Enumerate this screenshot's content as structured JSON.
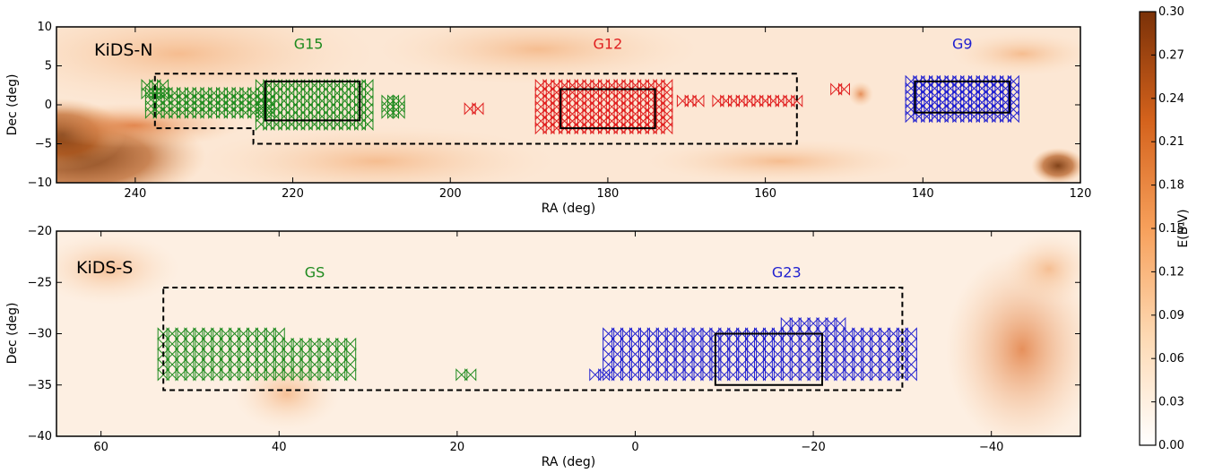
{
  "chart_data": [
    {
      "type": "scatter",
      "panel": "top",
      "annotation": "KiDS-N",
      "xlabel": "RA (deg)",
      "ylabel": "Dec (deg)",
      "xlim": [
        250,
        120
      ],
      "ylim": [
        -10,
        10
      ],
      "xticks": [
        240,
        220,
        200,
        180,
        160,
        140,
        120
      ],
      "yticks": [
        -10,
        -5,
        0,
        5,
        10
      ],
      "background": "dust extinction map E(B-V)",
      "field_labels": [
        {
          "text": "G15",
          "x": 218,
          "y": 7.2,
          "color": "#1e8a1e"
        },
        {
          "text": "G12",
          "x": 180,
          "y": 7.2,
          "color": "#e02020"
        },
        {
          "text": "G9",
          "x": 135,
          "y": 7.2,
          "color": "#2020d0"
        }
      ],
      "fields": [
        {
          "name": "G15",
          "ra": [
            211.5,
            223.5
          ],
          "dec": [
            -2,
            3
          ]
        },
        {
          "name": "G12",
          "ra": [
            174,
            186
          ],
          "dec": [
            -3,
            2
          ]
        },
        {
          "name": "G9",
          "ra": [
            129,
            141
          ],
          "dec": [
            -1,
            3
          ]
        }
      ],
      "footprint": [
        [
          237.5,
          4
        ],
        [
          156,
          4
        ],
        [
          156,
          -5
        ],
        [
          225,
          -5
        ],
        [
          225,
          -3
        ],
        [
          237.5,
          -3
        ]
      ],
      "series": [
        {
          "color": "#1e8a1e",
          "blocks": [
            {
              "ra": [
                238,
                223
              ],
              "dec": [
                -1,
                1.5
              ]
            },
            {
              "ra": [
                238.5,
                236.5
              ],
              "dec": [
                1.5,
                2.5
              ]
            },
            {
              "ra": [
                224,
                210.5
              ],
              "dec": [
                -2.5,
                2.5
              ]
            },
            {
              "ra": [
                208,
                206.5
              ],
              "dec": [
                -1,
                0.5
              ]
            }
          ]
        },
        {
          "color": "#e02020",
          "blocks": [
            {
              "ra": [
                188.5,
                172.5
              ],
              "dec": [
                -3,
                2.5
              ]
            },
            {
              "ra": [
                197.5,
                196.5
              ],
              "dec": [
                -0.5,
                -0.5
              ]
            },
            {
              "ra": [
                170.5,
                168.5
              ],
              "dec": [
                0.5,
                0.5
              ]
            },
            {
              "ra": [
                166,
                156
              ],
              "dec": [
                0.5,
                0.5
              ]
            },
            {
              "ra": [
                151,
                150
              ],
              "dec": [
                2,
                2
              ]
            }
          ]
        },
        {
          "color": "#2020d0",
          "blocks": [
            {
              "ra": [
                141.5,
                128.5
              ],
              "dec": [
                -1.5,
                3
              ]
            }
          ]
        }
      ]
    },
    {
      "type": "scatter",
      "panel": "bottom",
      "annotation": "KiDS-S",
      "xlabel": "RA (deg)",
      "ylabel": "Dec (deg)",
      "xlim": [
        65,
        -50
      ],
      "ylim": [
        -40,
        -20
      ],
      "xticks": [
        60,
        40,
        20,
        0,
        -20,
        -40
      ],
      "yticks": [
        -40,
        -35,
        -30,
        -25,
        -20
      ],
      "background": "dust extinction map E(B-V)",
      "field_labels": [
        {
          "text": "GS",
          "x": 36,
          "y": -24.5,
          "color": "#1e8a1e"
        },
        {
          "text": "G23",
          "x": -17,
          "y": -24.5,
          "color": "#2020d0"
        }
      ],
      "fields": [
        {
          "name": "G23",
          "ra": [
            -9,
            -21
          ],
          "dec": [
            -35,
            -30
          ]
        }
      ],
      "footprint": [
        [
          53,
          -25.5
        ],
        [
          -30,
          -25.5
        ],
        [
          -30,
          -35.5
        ],
        [
          53,
          -35.5
        ]
      ],
      "series": [
        {
          "color": "#1e8a1e",
          "blocks": [
            {
              "ra": [
                53,
                40
              ],
              "dec": [
                -34,
                -30
              ]
            },
            {
              "ra": [
                39,
                32
              ],
              "dec": [
                -34,
                -31
              ]
            },
            {
              "ra": [
                19.5,
                18.5
              ],
              "dec": [
                -34,
                -34
              ]
            }
          ]
        },
        {
          "color": "#2020d0",
          "blocks": [
            {
              "ra": [
                4.5,
                3.5
              ],
              "dec": [
                -34,
                -34
              ]
            },
            {
              "ra": [
                3,
                -31
              ],
              "dec": [
                -34,
                -30
              ]
            },
            {
              "ra": [
                -17,
                -23
              ],
              "dec": [
                -29,
                -29
              ]
            }
          ]
        }
      ]
    },
    {
      "type": "heatmap",
      "panel": "colorbar",
      "label": "E(B-V)",
      "range": [
        0.0,
        0.3
      ],
      "ticks": [
        "0.00",
        "0.03",
        "0.06",
        "0.09",
        "0.12",
        "0.15",
        "0.18",
        "0.21",
        "0.24",
        "0.27",
        "0.30"
      ],
      "colors": [
        "#ffffff",
        "#fdd9b3",
        "#f7a05b",
        "#d4621c",
        "#7a3108"
      ]
    }
  ]
}
